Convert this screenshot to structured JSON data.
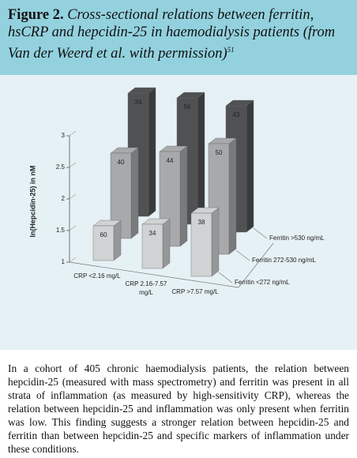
{
  "figure": {
    "label": "Figure 2.",
    "caption": "Cross-sectional relations between ferritin, hsCRP and hepcidin-25 in haemodialysis patients (from Van der Weerd et al. with permission)",
    "reference": "51"
  },
  "chart_data": {
    "type": "bar3d",
    "y_label": "ln(Hepcidin-25) in nM",
    "categories": [
      "CRP <2.16 mg/L",
      "CRP 2.16-7.57 mg/L",
      "CRP >7.57 mg/L"
    ],
    "series": [
      {
        "name": "Ferritin <272 ng/mL",
        "color": "#d0d2d3",
        "values": [
          1.55,
          1.7,
          2.0
        ],
        "counts": [
          60,
          34,
          38
        ]
      },
      {
        "name": "Ferritin 272-530 ng/mL",
        "color": "#a7a9ab",
        "values": [
          2.35,
          2.5,
          2.75
        ],
        "counts": [
          40,
          44,
          50
        ]
      },
      {
        "name": "Ferritin >530 ng/mL",
        "color": "#4f5153",
        "values": [
          2.95,
          3.0,
          3.0
        ],
        "counts": [
          34,
          56,
          43
        ]
      }
    ],
    "ylim": [
      1,
      3
    ],
    "yticks": [
      1,
      1.5,
      2,
      2.5,
      3
    ]
  },
  "body": "In a cohort of 405 chronic haemodialysis patients, the relation between hepcidin-25 (measured with mass spectrometry) and ferritin was present in all strata of inflammation (as measured by high-sensitivity CRP), whereas the relation between hepcidin-25 and inflammation was only present when ferritin was low. This finding suggests a stronger relation between hepcidin-25 and ferritin than between hepcidin-25 and specific markers of inflammation under these conditions."
}
